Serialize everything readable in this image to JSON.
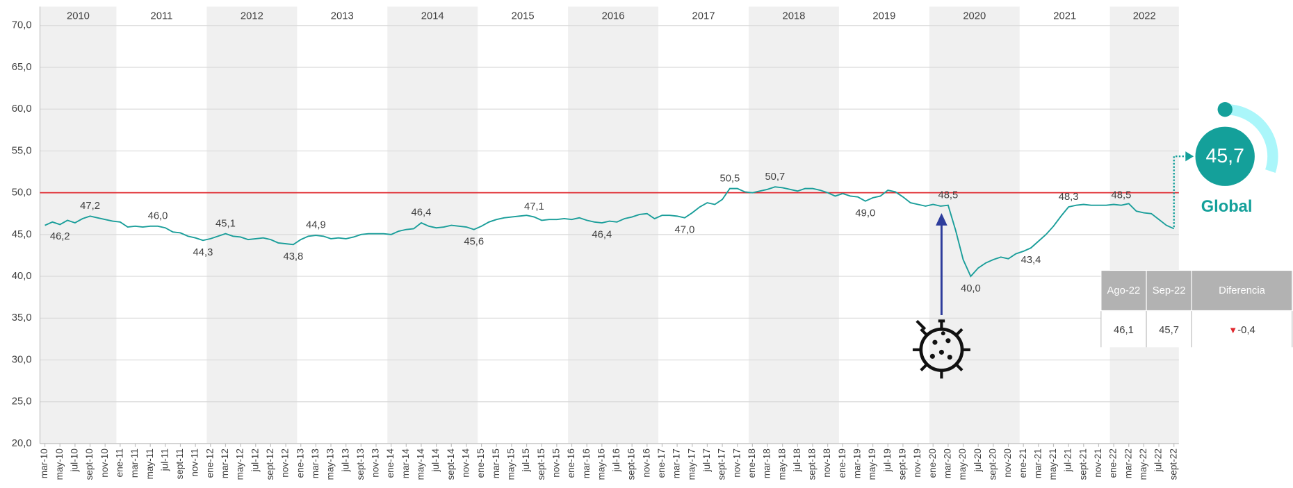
{
  "chart_data": {
    "type": "line",
    "categories": [
      "mar-10",
      null,
      "may-10",
      null,
      "jul-10",
      null,
      "sept-10",
      null,
      "nov-10",
      null,
      "ene-11",
      null,
      "mar-11",
      null,
      "may-11",
      null,
      "jul-11",
      null,
      "sept-11",
      null,
      "nov-11",
      null,
      "ene-12",
      null,
      "mar-12",
      null,
      "may-12",
      null,
      "jul-12",
      null,
      "sept-12",
      null,
      "nov-12",
      null,
      "ene-13",
      null,
      "mar-13",
      null,
      "may-13",
      null,
      "jul-13",
      null,
      "sept-13",
      null,
      "nov-13",
      null,
      "ene-14",
      null,
      "mar-14",
      null,
      "may-14",
      null,
      "jul-14",
      null,
      "sept-14",
      null,
      "nov-14",
      null,
      "ene-15",
      null,
      "mar-15",
      null,
      "may-15",
      null,
      "jul-15",
      null,
      "sept-15",
      null,
      "nov-15",
      null,
      "ene-16",
      null,
      "mar-16",
      null,
      "may-16",
      null,
      "jul-16",
      null,
      "sept-16",
      null,
      "nov-16",
      null,
      "ene-17",
      null,
      "mar-17",
      null,
      "may-17",
      null,
      "jul-17",
      null,
      "sept-17",
      null,
      "nov-17",
      null,
      "ene-18",
      null,
      "mar-18",
      null,
      "may-18",
      null,
      "jul-18",
      null,
      "sept-18",
      null,
      "nov-18",
      null,
      "ene-19",
      null,
      "mar-19",
      null,
      "may-19",
      null,
      "jul-19",
      null,
      "sept-19",
      null,
      "nov-19",
      null,
      "ene-20",
      null,
      "mar-20",
      null,
      "may-20",
      null,
      "jul-20",
      null,
      "sept-20",
      null,
      "nov-20",
      null,
      "ene-21",
      null,
      "mar-21",
      null,
      "may-21",
      null,
      "jul-21",
      null,
      "sept-21",
      null,
      "nov-21",
      null,
      "ene-22",
      null,
      "mar-22",
      null,
      "may-22",
      null,
      "jul-22",
      null,
      "sept-22"
    ],
    "values": [
      46.1,
      46.5,
      46.2,
      46.7,
      46.4,
      46.9,
      47.2,
      47.0,
      46.8,
      46.6,
      46.5,
      45.9,
      46.0,
      45.9,
      46.0,
      46.0,
      45.8,
      45.3,
      45.2,
      44.8,
      44.6,
      44.3,
      44.5,
      44.8,
      45.1,
      44.8,
      44.7,
      44.4,
      44.5,
      44.6,
      44.4,
      44.0,
      43.9,
      43.8,
      44.4,
      44.8,
      44.9,
      44.8,
      44.5,
      44.6,
      44.5,
      44.7,
      45.0,
      45.1,
      45.1,
      45.1,
      45.0,
      45.4,
      45.6,
      45.7,
      46.4,
      46.0,
      45.8,
      45.9,
      46.1,
      46.0,
      45.9,
      45.6,
      46.0,
      46.5,
      46.8,
      47.0,
      47.1,
      47.2,
      47.3,
      47.1,
      46.7,
      46.8,
      46.8,
      46.9,
      46.8,
      47.0,
      46.7,
      46.5,
      46.4,
      46.6,
      46.5,
      46.9,
      47.1,
      47.4,
      47.5,
      46.9,
      47.3,
      47.3,
      47.2,
      47.0,
      47.6,
      48.3,
      48.8,
      48.6,
      49.2,
      50.5,
      50.5,
      50.1,
      50.0,
      50.2,
      50.4,
      50.7,
      50.6,
      50.4,
      50.2,
      50.5,
      50.5,
      50.3,
      50.0,
      49.6,
      49.9,
      49.6,
      49.5,
      49.0,
      49.4,
      49.6,
      50.3,
      50.1,
      49.5,
      48.8,
      48.6,
      48.4,
      48.6,
      48.4,
      48.5,
      45.5,
      42.0,
      40.0,
      41.0,
      41.6,
      42.0,
      42.3,
      42.1,
      42.7,
      43.0,
      43.4,
      44.2,
      45.0,
      46.0,
      47.2,
      48.3,
      48.5,
      48.6,
      48.5,
      48.5,
      48.5,
      48.6,
      48.5,
      48.7,
      47.8,
      47.6,
      47.5,
      46.8,
      46.1,
      45.7
    ],
    "value_labels": [
      null,
      null,
      "46,2",
      null,
      null,
      null,
      "47,2",
      null,
      null,
      null,
      null,
      null,
      null,
      null,
      null,
      "46,0",
      null,
      null,
      null,
      null,
      null,
      "44,3",
      null,
      null,
      "45,1",
      null,
      null,
      null,
      null,
      null,
      null,
      null,
      null,
      "43,8",
      null,
      null,
      "44,9",
      null,
      null,
      null,
      null,
      null,
      null,
      null,
      null,
      null,
      null,
      null,
      null,
      null,
      "46,4",
      null,
      null,
      null,
      null,
      null,
      null,
      "45,6",
      null,
      null,
      null,
      null,
      null,
      null,
      null,
      "47,1",
      null,
      null,
      null,
      null,
      null,
      null,
      null,
      null,
      "46,4",
      null,
      null,
      null,
      null,
      null,
      null,
      null,
      null,
      null,
      null,
      "47,0",
      null,
      null,
      null,
      null,
      null,
      "50,5",
      null,
      null,
      null,
      null,
      null,
      "50,7",
      null,
      null,
      null,
      null,
      null,
      null,
      null,
      null,
      null,
      null,
      null,
      "49,0",
      null,
      null,
      null,
      null,
      null,
      null,
      null,
      null,
      null,
      null,
      "48,5",
      null,
      null,
      "40,0",
      null,
      null,
      null,
      null,
      null,
      null,
      null,
      "43,4",
      null,
      null,
      null,
      null,
      "48,3",
      null,
      null,
      null,
      null,
      null,
      null,
      "48,5",
      null,
      null,
      null,
      null,
      null,
      null,
      null
    ],
    "color": "#1a9e9a",
    "year_labels": [
      "2010",
      "2011",
      "2012",
      "2013",
      "2014",
      "2015",
      "2016",
      "2017",
      "2018",
      "2019",
      "2020",
      "2021",
      "2022"
    ],
    "year_band_color": "#f0f0f0",
    "reference_line": 50,
    "reference_color": "#e0282e",
    "ylim": [
      20,
      70
    ],
    "yticks": [
      {
        "value": 20,
        "label": "20,0"
      },
      {
        "value": 25,
        "label": "25,0"
      },
      {
        "value": 30,
        "label": "30,0"
      },
      {
        "value": 35,
        "label": "35,0"
      },
      {
        "value": 40,
        "label": "40,0"
      },
      {
        "value": 45,
        "label": "45,0"
      },
      {
        "value": 50,
        "label": "50,0"
      },
      {
        "value": 55,
        "label": "55,0"
      },
      {
        "value": 60,
        "label": "60,0"
      },
      {
        "value": 65,
        "label": "65,0"
      },
      {
        "value": 70,
        "label": "70,0"
      }
    ],
    "grid": true
  },
  "gauge": {
    "value_label": "45,7",
    "label": "Global"
  },
  "summary_table": {
    "headers": [
      "Ago-22",
      "Sep-22",
      "Diferencia"
    ],
    "rows": [
      [
        "46,1",
        "45,7",
        "-0,4"
      ]
    ]
  }
}
